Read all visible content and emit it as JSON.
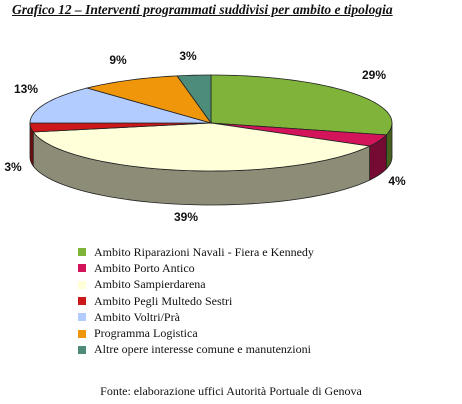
{
  "title": "Grafico 12 – Interventi programmati suddivisi per ambito e tipologia",
  "source": "Fonte: elaborazione uffici Autorità Portuale di Genova",
  "chart_data": {
    "type": "pie",
    "title": "Grafico 12 – Interventi programmati suddivisi per ambito e tipologia",
    "slices": [
      {
        "name": "Ambito Riparazioni Navali - Fiera e Kennedy",
        "value": 29,
        "label": "29%",
        "color": "#80b33a"
      },
      {
        "name": "Ambito Porto Antico",
        "value": 4,
        "label": "4%",
        "color": "#d4145a"
      },
      {
        "name": "Ambito Sampierdarena",
        "value": 39,
        "label": "39%",
        "color": "#ffffd9"
      },
      {
        "name": "Ambito Pegli Multedo Sestri",
        "value": 3,
        "label": "3%",
        "color": "#cc1818"
      },
      {
        "name": "Ambito Voltri/Prà",
        "value": 13,
        "label": "13%",
        "color": "#b3ccff"
      },
      {
        "name": "Programma Logistica",
        "value": 9,
        "label": "9%",
        "color": "#f0960a"
      },
      {
        "name": "Altre opere interesse comune e manutenzioni",
        "value": 3,
        "label": "3%",
        "color": "#4d8c7a"
      }
    ],
    "legend_placement": "bottom"
  }
}
